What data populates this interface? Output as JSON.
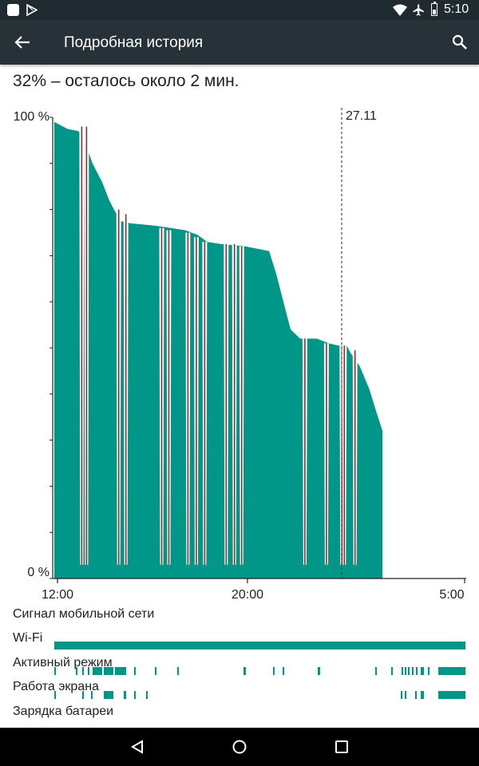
{
  "status_bar": {
    "time": "5:10",
    "left_icons": [
      "app-square-icon",
      "play-store-icon"
    ],
    "right_icons": [
      "wifi-icon",
      "airplane-icon",
      "battery-icon"
    ]
  },
  "app_bar": {
    "title": "Подробная история",
    "back_icon": "arrow-back-icon",
    "search_icon": "search-icon"
  },
  "summary": "32% – осталось около 2 мин.",
  "chart_data": {
    "type": "area",
    "y_top_label": "100 %",
    "y_bottom_label": "0 %",
    "ylim": [
      0,
      100
    ],
    "x_ticks": [
      "12:00",
      "20:00",
      "5:00"
    ],
    "date_marker": "27.11",
    "fill_color": "#009688",
    "tick_color": "#8b2d2d",
    "battery_series": [
      [
        0,
        99
      ],
      [
        0.55,
        97.5
      ],
      [
        1.0,
        97
      ],
      [
        1.2,
        96
      ],
      [
        1.6,
        90
      ],
      [
        2.0,
        86
      ],
      [
        2.3,
        82
      ],
      [
        2.5,
        80
      ],
      [
        2.8,
        77.5
      ],
      [
        3.2,
        77
      ],
      [
        4.2,
        76.5
      ],
      [
        4.9,
        76
      ],
      [
        5.5,
        75.5
      ],
      [
        6.0,
        74.5
      ],
      [
        6.4,
        73
      ],
      [
        7.0,
        72.5
      ],
      [
        8.0,
        72
      ],
      [
        9.0,
        71
      ],
      [
        9.3,
        66
      ],
      [
        9.6,
        60
      ],
      [
        9.9,
        54
      ],
      [
        10.3,
        52
      ],
      [
        11.0,
        52
      ],
      [
        11.5,
        51
      ],
      [
        11.9,
        50.5
      ],
      [
        12.25,
        50.5
      ],
      [
        12.4,
        49
      ],
      [
        12.8,
        46
      ],
      [
        13.2,
        41
      ],
      [
        13.5,
        36
      ],
      [
        13.75,
        32
      ]
    ],
    "drops": [
      {
        "x": 1.15,
        "top": 98,
        "bottom": 3
      },
      {
        "x": 1.35,
        "top": 98,
        "bottom": 3
      },
      {
        "x": 2.7,
        "top": 80,
        "bottom": 3
      },
      {
        "x": 3.0,
        "top": 79,
        "bottom": 3
      },
      {
        "x": 4.5,
        "top": 76,
        "bottom": 3
      },
      {
        "x": 4.8,
        "top": 75.5,
        "bottom": 3
      },
      {
        "x": 5.6,
        "top": 75,
        "bottom": 3
      },
      {
        "x": 5.95,
        "top": 74,
        "bottom": 3
      },
      {
        "x": 6.3,
        "top": 73,
        "bottom": 3
      },
      {
        "x": 7.2,
        "top": 72.5,
        "bottom": 3
      },
      {
        "x": 7.55,
        "top": 72.5,
        "bottom": 3
      },
      {
        "x": 7.85,
        "top": 72,
        "bottom": 3
      },
      {
        "x": 10.5,
        "top": 52,
        "bottom": 3
      },
      {
        "x": 11.4,
        "top": 51,
        "bottom": 3
      },
      {
        "x": 12.05,
        "top": 50.5,
        "bottom": 3
      },
      {
        "x": 12.15,
        "top": 50.5,
        "bottom": 3
      },
      {
        "x": 12.6,
        "top": 49.5,
        "bottom": 3
      }
    ]
  },
  "rows": {
    "mobile_signal": "Сигнал мобильной сети",
    "wifi": "Wi-Fi",
    "awake": "Активный режим",
    "screen_on": "Работа экрана",
    "charging": "Зарядка батареи"
  },
  "nav_bar": {
    "back": "nav-back-icon",
    "home": "nav-home-icon",
    "recents": "nav-recents-icon"
  }
}
